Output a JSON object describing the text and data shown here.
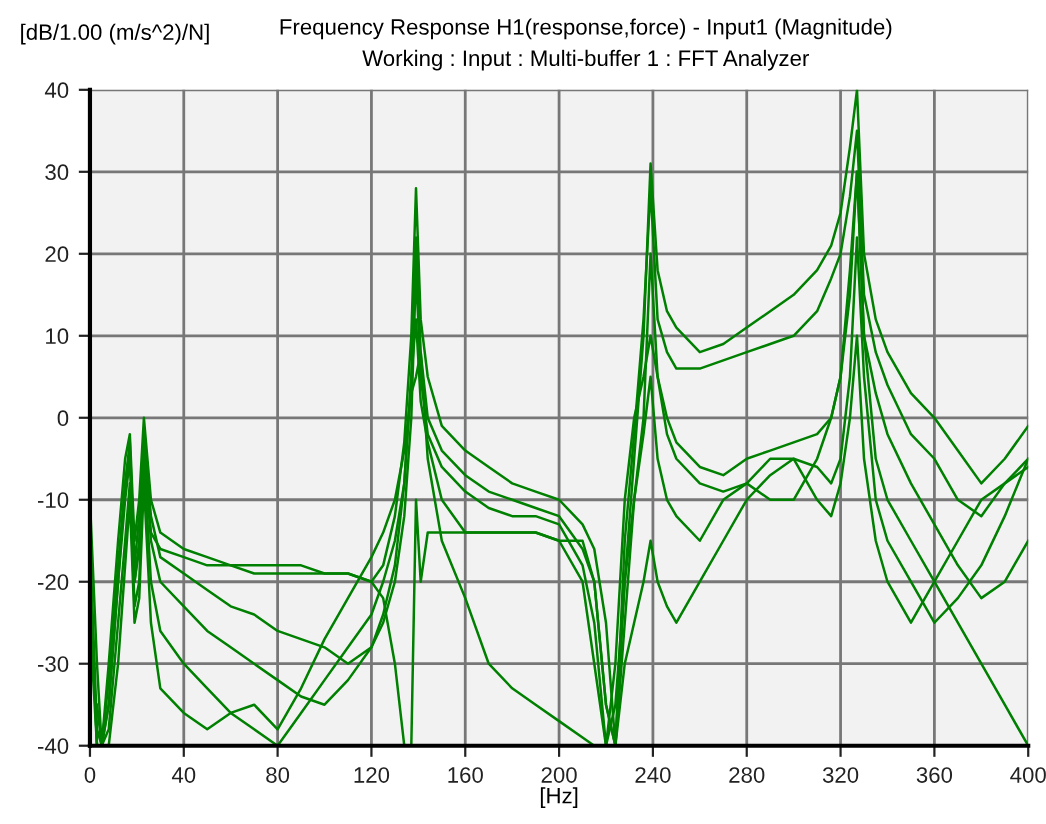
{
  "chart_data": {
    "type": "line",
    "title": "Frequency Response H1(response,force) - Input1 (Magnitude)",
    "subtitle": "Working : Input : Multi-buffer 1 : FFT Analyzer",
    "ylabel": "[dB/1.00 (m/s^2)/N]",
    "xlabel": "[Hz]",
    "x": [
      0,
      3,
      5,
      8,
      12,
      15,
      17,
      19,
      21,
      23,
      26,
      30,
      40,
      50,
      60,
      70,
      80,
      90,
      100,
      110,
      120,
      125,
      130,
      134,
      137,
      139,
      141,
      144,
      150,
      160,
      170,
      180,
      190,
      200,
      210,
      215,
      220,
      224,
      228,
      232,
      236,
      239,
      242,
      246,
      250,
      260,
      270,
      280,
      290,
      300,
      310,
      316,
      320,
      324,
      327,
      330,
      335,
      340,
      350,
      360,
      370,
      380,
      390,
      400
    ],
    "series": [
      {
        "color": "#008000",
        "values": [
          -10,
          -30,
          -40,
          -30,
          -15,
          -5,
          -2,
          -15,
          -10,
          0,
          -10,
          -14,
          -16,
          -17,
          -18,
          -18,
          -18,
          -18,
          -19,
          -19,
          -20,
          -18,
          -12,
          -3,
          10,
          28,
          12,
          5,
          -1,
          -4,
          -6,
          -8,
          -9,
          -10,
          -13,
          -16,
          -25,
          -40,
          -20,
          -5,
          10,
          31,
          18,
          13,
          11,
          8,
          9,
          11,
          13,
          15,
          18,
          21,
          25,
          33,
          40,
          20,
          12,
          8,
          3,
          0,
          -4,
          -8,
          -5,
          -1
        ]
      },
      {
        "color": "#008000",
        "values": [
          null,
          -35,
          -40,
          -32,
          -18,
          -8,
          -3,
          -18,
          -12,
          -2,
          -12,
          -17,
          -19,
          -21,
          -23,
          -24,
          -26,
          -27,
          -28,
          -30,
          -28,
          -24,
          -18,
          -8,
          5,
          22,
          8,
          0,
          -4,
          -7,
          -9,
          -10,
          -11,
          -12,
          -16,
          -20,
          -35,
          -40,
          -15,
          -2,
          12,
          28,
          12,
          8,
          6,
          6,
          7,
          8,
          9,
          10,
          13,
          17,
          20,
          27,
          35,
          15,
          8,
          4,
          -2,
          -5,
          -10,
          -12,
          -8,
          -6
        ]
      },
      {
        "color": "#008000",
        "values": [
          -15,
          -38,
          -40,
          -35,
          -20,
          -10,
          -5,
          -20,
          -15,
          -3,
          -15,
          -20,
          -23,
          -26,
          -28,
          -30,
          -32,
          -34,
          -35,
          -32,
          -28,
          -25,
          -20,
          -12,
          0,
          18,
          5,
          -2,
          -6,
          -9,
          -11,
          -12,
          -12,
          -13,
          -18,
          -25,
          -40,
          -30,
          -10,
          0,
          5,
          10,
          5,
          0,
          -3,
          -6,
          -7,
          -5,
          -4,
          -3,
          -2,
          0,
          5,
          15,
          30,
          10,
          3,
          -2,
          -8,
          -13,
          -18,
          -22,
          -20,
          -15
        ]
      },
      {
        "color": "#008000",
        "values": [
          -20,
          -40,
          -40,
          -38,
          -25,
          -15,
          -8,
          -23,
          -20,
          -5,
          -20,
          -26,
          -30,
          -33,
          -36,
          -38,
          -40,
          -36,
          -32,
          -28,
          -24,
          -20,
          -15,
          -8,
          5,
          12,
          2,
          -3,
          -10,
          -14,
          -14,
          -14,
          -14,
          -15,
          -20,
          -30,
          -40,
          -35,
          -20,
          -10,
          -2,
          5,
          -5,
          -10,
          -12,
          -15,
          -10,
          -8,
          -5,
          -5,
          -6,
          -8,
          -5,
          5,
          22,
          5,
          -10,
          -15,
          -20,
          -25,
          -22,
          -18,
          -12,
          -5
        ]
      },
      {
        "color": "#008000",
        "values": [
          -25,
          -40,
          -40,
          -40,
          -30,
          -18,
          -10,
          -25,
          -22,
          -8,
          -25,
          -33,
          -36,
          -38,
          -36,
          -35,
          -38,
          -33,
          -27,
          -22,
          -17,
          -14,
          -10,
          -4,
          3,
          5,
          8,
          -5,
          -15,
          -22,
          -30,
          -33,
          -35,
          -37,
          -39,
          -40,
          -40,
          -40,
          -30,
          -25,
          -20,
          -15,
          -20,
          -23,
          -25,
          -20,
          -15,
          -10,
          -7,
          -5,
          -10,
          -12,
          -8,
          0,
          10,
          -5,
          -15,
          -20,
          -25,
          -20,
          -15,
          -10,
          -8,
          -5
        ]
      },
      {
        "color": "#008000",
        "values": [
          -18,
          -40,
          -40,
          -35,
          -20,
          -8,
          -4,
          -20,
          -16,
          -4,
          -14,
          -16,
          -17,
          -18,
          -18,
          -19,
          -19,
          -19,
          -19,
          -19,
          -20,
          -22,
          -30,
          -40,
          -40,
          -10,
          -20,
          -14,
          -14,
          -14,
          -14,
          -14,
          -14,
          -15,
          -15,
          -20,
          -35,
          -40,
          -25,
          -10,
          0,
          20,
          5,
          -2,
          -5,
          -8,
          -9,
          -8,
          -10,
          -10,
          -5,
          0,
          5,
          18,
          30,
          10,
          -5,
          -10,
          -15,
          -20,
          -25,
          -30,
          -35,
          -40
        ]
      }
    ],
    "xlim": [
      0,
      400
    ],
    "xticks": [
      0,
      40,
      80,
      120,
      160,
      200,
      240,
      280,
      320,
      360,
      400
    ],
    "ylim": [
      -40,
      40
    ],
    "yticks": [
      -40,
      -30,
      -20,
      -10,
      0,
      10,
      20,
      30,
      40
    ],
    "grid": true,
    "line_style": "solid",
    "marker": "none",
    "legend": false
  }
}
